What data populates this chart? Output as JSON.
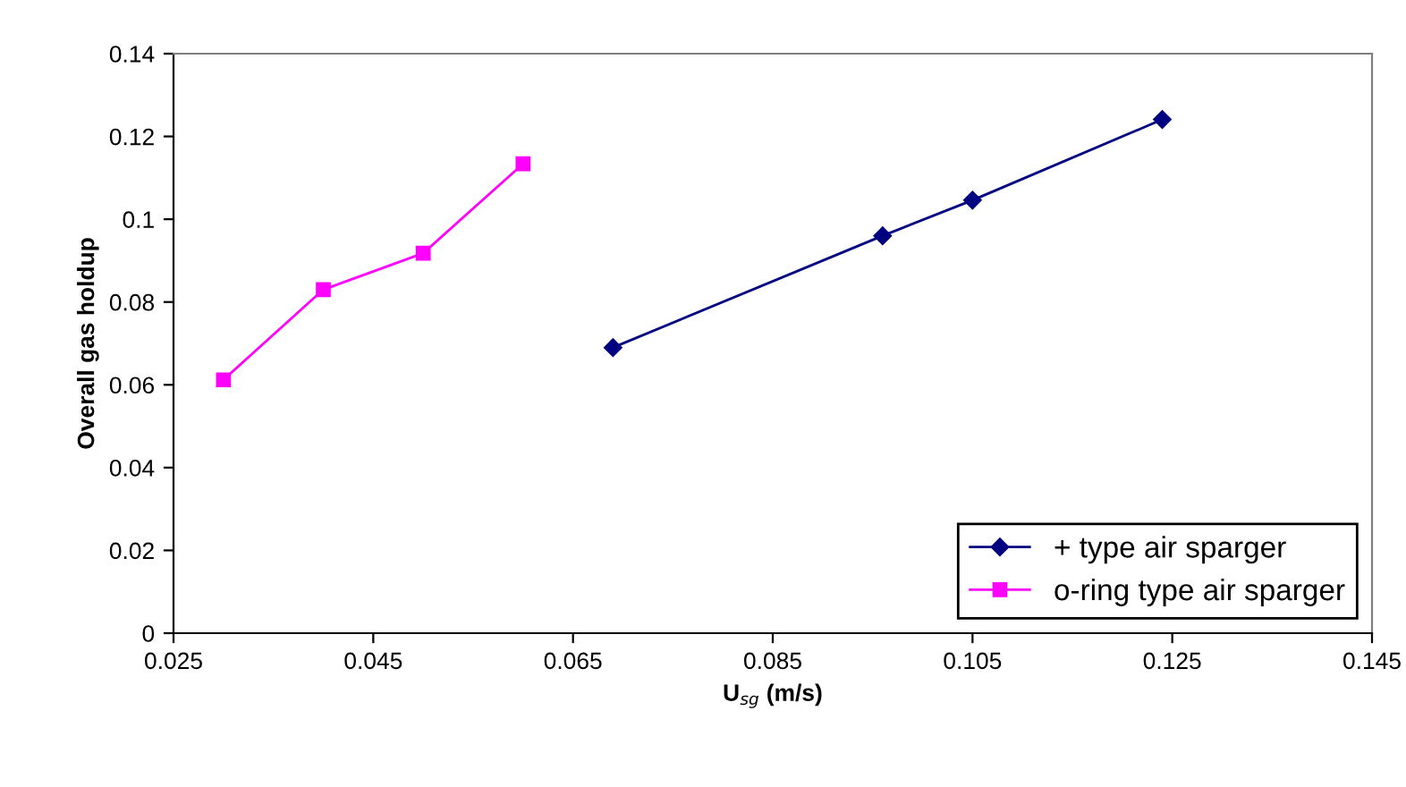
{
  "chart_data": {
    "type": "line",
    "xlabel": "U$_{sg}$ (m/s)",
    "ylabel": "Overall gas holdup",
    "series": [
      {
        "name": "+ type air sparger",
        "color": "#000080",
        "marker": "diamond",
        "x": [
          0.069,
          0.096,
          0.105,
          0.124
        ],
        "values": [
          0.069,
          0.096,
          0.1046,
          0.1241
        ]
      },
      {
        "name": "o-ring type air sparger",
        "color": "#ff00ff",
        "marker": "square",
        "x": [
          0.03,
          0.04,
          0.05,
          0.06
        ],
        "values": [
          0.0612,
          0.083,
          0.0918,
          0.1134
        ]
      }
    ],
    "xlim": [
      0.025,
      0.145
    ],
    "xticks": [
      0.025,
      0.045,
      0.065,
      0.085,
      0.105,
      0.125,
      0.145
    ],
    "ylim": [
      0,
      0.14
    ],
    "yticks": [
      0,
      0.02,
      0.04,
      0.06,
      0.08,
      0.1,
      0.12,
      0.14
    ],
    "grid": false,
    "legend": "bottom right",
    "line_style": "solid"
  }
}
